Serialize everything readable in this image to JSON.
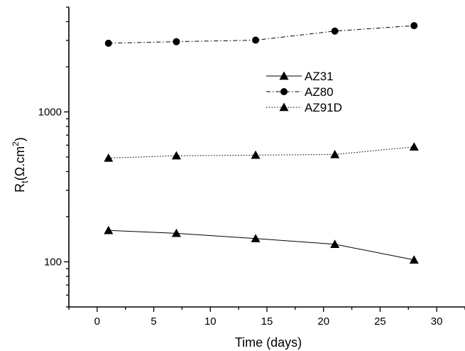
{
  "chart_data": {
    "type": "line",
    "xlabel": "Time (days)",
    "ylabel": {
      "main": "R",
      "sub": "t",
      "unit_open": "(Ω.cm",
      "sup": "2",
      "unit_close": ")"
    },
    "xlim": [
      -2.5,
      32.5
    ],
    "ylim": [
      50,
      5000
    ],
    "yscale": "log",
    "x_ticks": [
      0,
      5,
      10,
      15,
      20,
      25,
      30
    ],
    "x_tick_labels": [
      "0",
      "5",
      "10",
      "15",
      "20",
      "25",
      "30"
    ],
    "y_ticks": [
      100,
      1000
    ],
    "y_tick_labels": [
      "100",
      "1000"
    ],
    "legend_position": "upper-right-inside",
    "series": [
      {
        "name": "AZ31",
        "marker": "triangle",
        "line": "solid",
        "x": [
          1,
          7,
          14,
          21,
          28
        ],
        "y": [
          162,
          155,
          143,
          131,
          103
        ]
      },
      {
        "name": "AZ80",
        "marker": "circle",
        "line": "dashdot",
        "x": [
          1,
          7,
          14,
          21,
          28
        ],
        "y": [
          2870,
          2940,
          3010,
          3460,
          3760
        ]
      },
      {
        "name": "AZ91D",
        "marker": "triangle",
        "line": "dotted",
        "x": [
          1,
          7,
          14,
          21,
          28
        ],
        "y": [
          492,
          510,
          515,
          520,
          585
        ]
      }
    ],
    "colors": {
      "lines": "#000000",
      "background": "#ffffff"
    }
  }
}
